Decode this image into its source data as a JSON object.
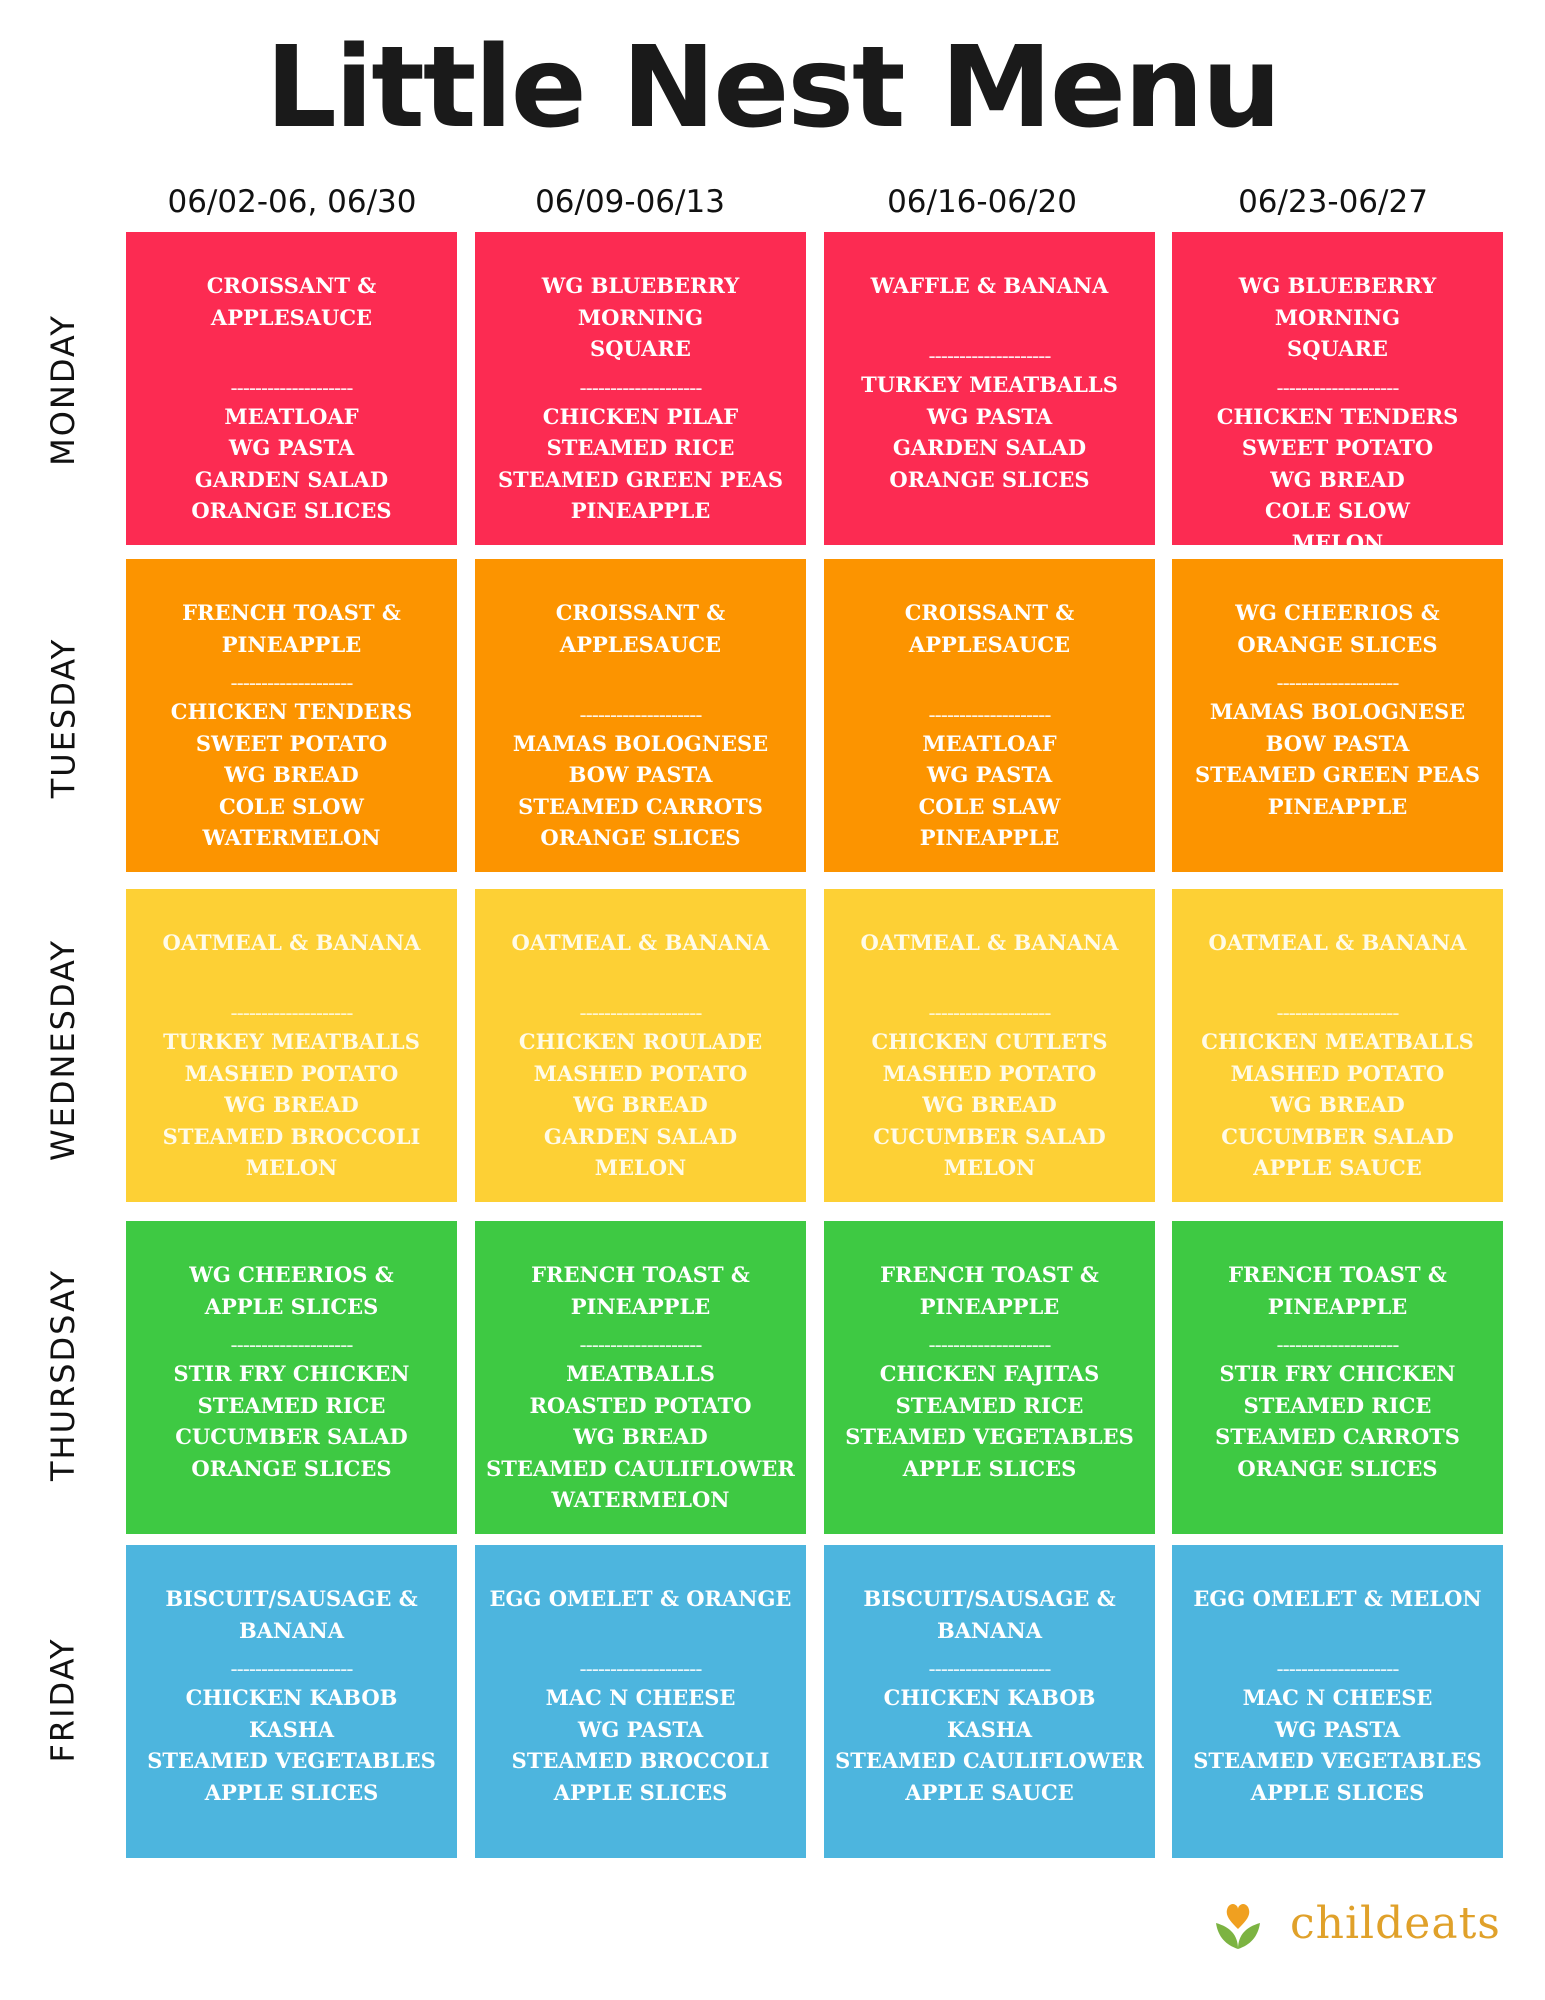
{
  "title": "Little Nest Menu",
  "colors": {
    "monday": "#fc2b52",
    "tuesday": "#fc9400",
    "wednesday": "#fdd035",
    "thursday": "#3ec943",
    "friday": "#4db5de",
    "logo_text": "#e0a12a",
    "logo_leaf": "#7cb342",
    "logo_heart": "#f0a020"
  },
  "weeks": [
    "06/02-06, 06/30",
    "06/09-06/13",
    "06/16-06/20",
    "06/23-06/27"
  ],
  "separator": "--------------------",
  "days": [
    {
      "name": "MONDAY",
      "color_key": "monday",
      "cells": [
        {
          "breakfast": [
            "CROISSANT & APPLESAUCE"
          ],
          "lunch": [
            "MEATLOAF",
            "WG PASTA",
            "GARDEN SALAD",
            "ORANGE SLICES"
          ]
        },
        {
          "breakfast": [
            "WG BLUEBERRY MORNING",
            "SQUARE"
          ],
          "lunch": [
            "CHICKEN PILAF",
            "STEAMED RICE",
            "STEAMED GREEN PEAS",
            "PINEAPPLE"
          ]
        },
        {
          "breakfast": [
            "WAFFLE & BANANA"
          ],
          "lunch": [
            "TURKEY MEATBALLS",
            "WG PASTA",
            "GARDEN SALAD",
            "ORANGE SLICES"
          ]
        },
        {
          "breakfast": [
            "WG BLUEBERRY MORNING",
            "SQUARE"
          ],
          "lunch": [
            "CHICKEN TENDERS",
            "SWEET POTATO",
            "WG BREAD",
            "COLE SLOW",
            "MELON"
          ]
        }
      ]
    },
    {
      "name": "TUESDAY",
      "color_key": "tuesday",
      "cells": [
        {
          "breakfast": [
            "FRENCH TOAST &",
            "PINEAPPLE"
          ],
          "lunch": [
            "CHICKEN TENDERS",
            "SWEET POTATO",
            "WG BREAD",
            "COLE SLOW",
            "WATERMELON"
          ]
        },
        {
          "breakfast": [
            "CROISSANT & APPLESAUCE"
          ],
          "lunch": [
            "MAMAS BOLOGNESE",
            "BOW PASTA",
            "STEAMED CARROTS",
            "ORANGE SLICES"
          ]
        },
        {
          "breakfast": [
            "CROISSANT & APPLESAUCE"
          ],
          "lunch": [
            "MEATLOAF",
            "WG PASTA",
            "COLE SLAW",
            "PINEAPPLE"
          ]
        },
        {
          "breakfast": [
            "WG CHEERIOS &",
            "ORANGE SLICES"
          ],
          "lunch": [
            "MAMAS BOLOGNESE",
            "BOW PASTA",
            "STEAMED GREEN PEAS",
            "PINEAPPLE"
          ]
        }
      ]
    },
    {
      "name": "WEDNESDAY",
      "color_key": "wednesday",
      "cells": [
        {
          "breakfast": [
            "OATMEAL & BANANA"
          ],
          "lunch": [
            "TURKEY MEATBALLS",
            "MASHED POTATO",
            "WG BREAD",
            "STEAMED BROCCOLI",
            "MELON"
          ]
        },
        {
          "breakfast": [
            "OATMEAL & BANANA"
          ],
          "lunch": [
            "CHICKEN ROULADE",
            "MASHED POTATO",
            "WG BREAD",
            "GARDEN SALAD",
            "MELON"
          ]
        },
        {
          "breakfast": [
            "OATMEAL & BANANA"
          ],
          "lunch": [
            "CHICKEN CUTLETS",
            "MASHED POTATO",
            "WG BREAD",
            "CUCUMBER SALAD",
            "MELON"
          ]
        },
        {
          "breakfast": [
            "OATMEAL & BANANA"
          ],
          "lunch": [
            "CHICKEN MEATBALLS",
            "MASHED POTATO",
            "WG BREAD",
            "CUCUMBER SALAD",
            "APPLE SAUCE"
          ]
        }
      ]
    },
    {
      "name": "THURSDSAY",
      "color_key": "thursday",
      "cells": [
        {
          "breakfast": [
            "WG CHEERIOS &",
            "APPLE SLICES"
          ],
          "lunch": [
            "STIR FRY CHICKEN",
            "STEAMED RICE",
            "CUCUMBER SALAD",
            "ORANGE SLICES"
          ]
        },
        {
          "breakfast": [
            "FRENCH TOAST &",
            "PINEAPPLE"
          ],
          "lunch": [
            "MEATBALLS",
            "ROASTED  POTATO",
            "WG BREAD",
            "STEAMED CAULIFLOWER",
            "WATERMELON"
          ]
        },
        {
          "breakfast": [
            "FRENCH TOAST &",
            "PINEAPPLE"
          ],
          "lunch": [
            "CHICKEN FAJITAS",
            "STEAMED RICE",
            "STEAMED VEGETABLES",
            "APPLE SLICES"
          ]
        },
        {
          "breakfast": [
            "FRENCH TOAST &",
            "PINEAPPLE"
          ],
          "lunch": [
            "STIR FRY CHICKEN",
            "STEAMED RICE",
            "STEAMED CARROTS",
            "ORANGE SLICES"
          ]
        }
      ]
    },
    {
      "name": "FRIDAY",
      "color_key": "friday",
      "cells": [
        {
          "breakfast": [
            "BISCUIT/SAUSAGE &",
            "BANANA"
          ],
          "lunch": [
            "CHICKEN KABOB",
            "KASHA",
            "STEAMED VEGETABLES",
            "APPLE SLICES"
          ]
        },
        {
          "breakfast": [
            "EGG OMELET & ORANGE"
          ],
          "lunch": [
            "MAC N CHEESE",
            "WG PASTA",
            "STEAMED BROCCOLI",
            "APPLE SLICES"
          ]
        },
        {
          "breakfast": [
            "BISCUIT/SAUSAGE &",
            "BANANA"
          ],
          "lunch": [
            "CHICKEN KABOB",
            "KASHA",
            "STEAMED CAULIFLOWER",
            "APPLE SAUCE"
          ]
        },
        {
          "breakfast": [
            "EGG OMELET & MELON"
          ],
          "lunch": [
            "MAC N CHEESE",
            "WG PASTA",
            "STEAMED VEGETABLES",
            "APPLE SLICES"
          ]
        }
      ]
    }
  ],
  "logo": {
    "text": "childeats",
    "icon": "heart-leaves-icon"
  }
}
